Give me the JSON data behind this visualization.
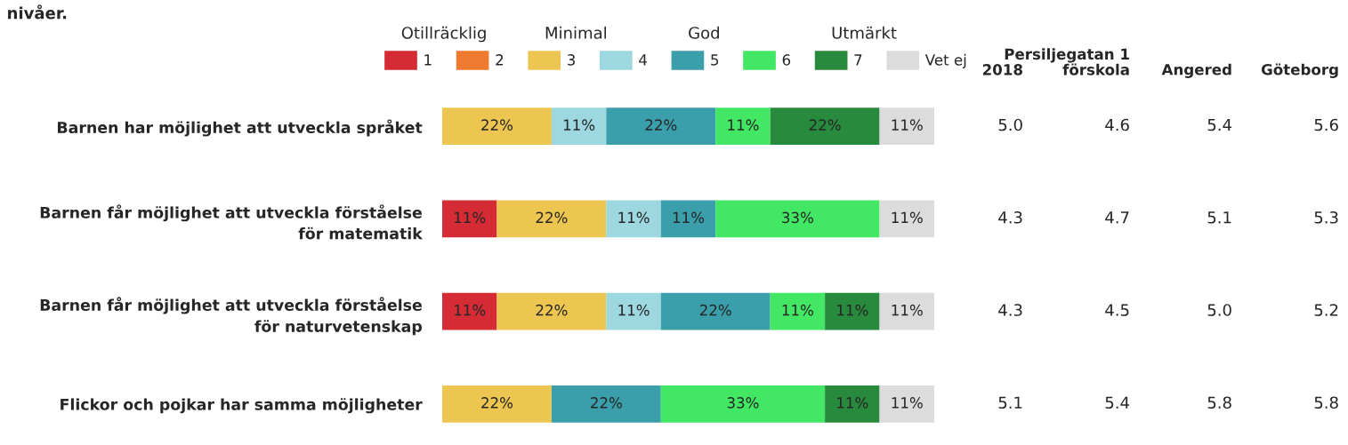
{
  "chart_data": [
    {
      "type": "bar",
      "orientation": "horizontal",
      "stacked": true,
      "legend": "top",
      "title": "nivåer.",
      "categories": [
        "Barnen har möjlighet att utveckla språket",
        "Barnen får möjlighet att utveckla förståelse\nför matematik",
        "Barnen får möjlighet att utveckla förståelse\nför naturvetenskap",
        "Flickor och pojkar har samma möjligheter"
      ],
      "annotations": [
        "Otillräcklig",
        "Minimal",
        "God",
        "Utmärkt"
      ],
      "series": [
        {
          "name": "1",
          "color": "#d42b35",
          "values": [
            null,
            11,
            11,
            null
          ],
          "value_labels": [
            null,
            "11%",
            "11%",
            null
          ]
        },
        {
          "name": "2",
          "color": "#ee7b30",
          "values": [
            null,
            null,
            null,
            null
          ],
          "value_labels": [
            null,
            null,
            null,
            null
          ]
        },
        {
          "name": "3",
          "color": "#ecc650",
          "values": [
            22,
            22,
            22,
            22
          ],
          "value_labels": [
            "22%",
            "22%",
            "22%",
            "22%"
          ]
        },
        {
          "name": "4",
          "color": "#9dd8e0",
          "values": [
            11,
            11,
            11,
            null
          ],
          "value_labels": [
            "11%",
            "11%",
            "11%",
            null
          ]
        },
        {
          "name": "5",
          "color": "#3a9faa",
          "values": [
            22,
            11,
            22,
            22
          ],
          "value_labels": [
            "22%",
            "11%",
            "22%",
            "22%"
          ]
        },
        {
          "name": "6",
          "color": "#42e864",
          "values": [
            11,
            33,
            11,
            33
          ],
          "value_labels": [
            "11%",
            "33%",
            "11%",
            "33%"
          ]
        },
        {
          "name": "7",
          "color": "#288a3c",
          "values": [
            22,
            null,
            11,
            11
          ],
          "value_labels": [
            "22%",
            null,
            "11%",
            "11%"
          ]
        },
        {
          "name": "Vet ej",
          "color": "#dcdcdc",
          "values": [
            11,
            11,
            11,
            11
          ],
          "value_labels": [
            "11%",
            "11%",
            "11%",
            "11%"
          ]
        }
      ]
    },
    {
      "type": "other",
      "annotations": [
        "2018",
        "Persiljegatan 1\nförskola",
        "Angered",
        "Göteborg",
        "5.0",
        "4.6",
        "5.4",
        "5.6",
        "4.3",
        "4.7",
        "5.1",
        "5.3",
        "4.3",
        "4.5",
        "5.0",
        "5.2",
        "5.1",
        "5.4",
        "5.8",
        "5.8"
      ]
    }
  ]
}
